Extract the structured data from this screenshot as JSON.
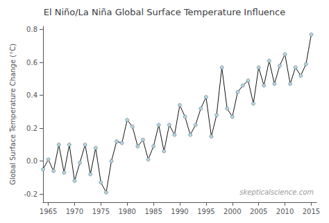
{
  "chart_data": {
    "type": "line",
    "title": "El Niño/La Niña Global Surface Temperature Influence",
    "ylabel": "Global Surface Temperature Change (°C)",
    "annotations": [
      "skepticalscience.com"
    ],
    "x": [
      1964,
      1965,
      1966,
      1967,
      1968,
      1969,
      1970,
      1971,
      1972,
      1973,
      1974,
      1975,
      1976,
      1977,
      1978,
      1979,
      1980,
      1981,
      1982,
      1983,
      1984,
      1985,
      1986,
      1987,
      1988,
      1989,
      1990,
      1991,
      1992,
      1993,
      1994,
      1995,
      1996,
      1997,
      1998,
      1999,
      2000,
      2001,
      2002,
      2003,
      2004,
      2005,
      2006,
      2007,
      2008,
      2009,
      2010,
      2011,
      2012,
      2013,
      2014,
      2015
    ],
    "values": [
      -0.05,
      0.01,
      -0.06,
      0.1,
      -0.07,
      0.1,
      -0.12,
      -0.01,
      0.1,
      -0.08,
      0.08,
      -0.13,
      -0.19,
      0.0,
      0.12,
      0.11,
      0.25,
      0.21,
      0.09,
      0.13,
      0.01,
      0.09,
      0.22,
      0.06,
      0.22,
      0.16,
      0.34,
      0.27,
      0.16,
      0.22,
      0.32,
      0.39,
      0.15,
      0.28,
      0.57,
      0.32,
      0.27,
      0.42,
      0.46,
      0.49,
      0.35,
      0.57,
      0.46,
      0.61,
      0.47,
      0.58,
      0.65,
      0.47,
      0.57,
      0.52,
      0.59,
      0.77
    ],
    "xlim": [
      1964,
      2016
    ],
    "xticks": [
      1965,
      1970,
      1975,
      1980,
      1985,
      1990,
      1995,
      2000,
      2005,
      2010,
      2015
    ],
    "ylim": [
      -0.25,
      0.82
    ],
    "yticks": [
      -0.2,
      {
        "value": 0.0,
        "label": "0.0"
      },
      0.2,
      0.4,
      0.6,
      0.8
    ],
    "color": "#111111",
    "marker": "circle",
    "grid": false
  }
}
